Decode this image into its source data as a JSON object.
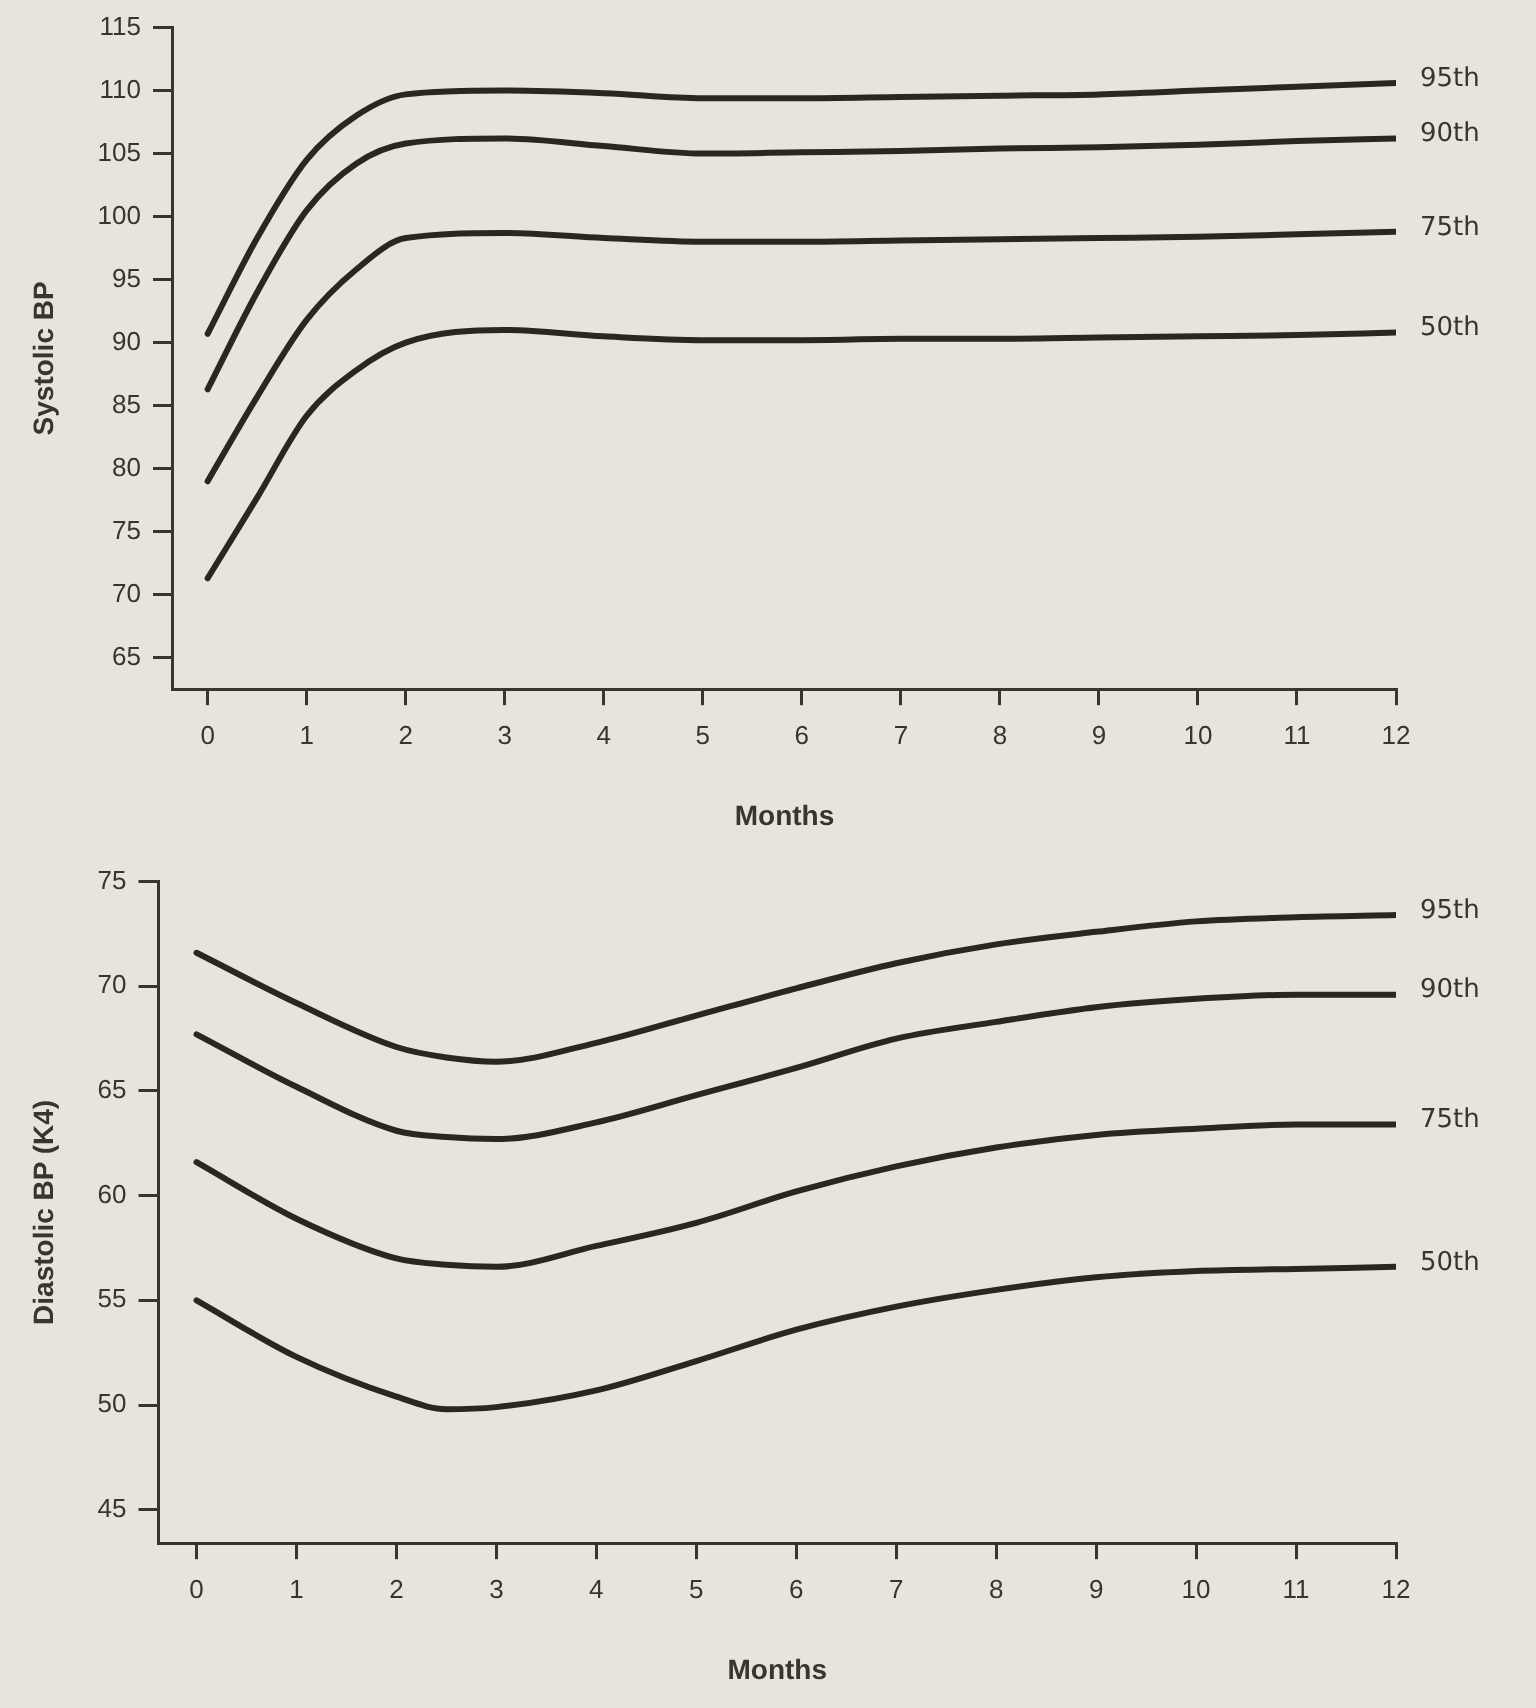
{
  "chart_data": [
    {
      "type": "line",
      "ylabel": "Systolic BP",
      "xlabel": "Months",
      "x": [
        0,
        0.5,
        1,
        1.5,
        2,
        3,
        4,
        5,
        6,
        7,
        8,
        9,
        10,
        11,
        12
      ],
      "xlim": [
        -0.35,
        12
      ],
      "xticks": [
        0,
        1,
        2,
        3,
        4,
        5,
        6,
        7,
        8,
        9,
        10,
        11,
        12
      ],
      "ylim": [
        62.5,
        115
      ],
      "yticks": [
        65,
        70,
        75,
        80,
        85,
        90,
        95,
        100,
        105,
        110,
        115
      ],
      "grid": false,
      "legend": false,
      "marker": "none",
      "line_style": "solid",
      "series": [
        {
          "name": "95th",
          "color": "#2b2622",
          "values": [
            90.7,
            98.3,
            104.5,
            108,
            109.7,
            110,
            109.8,
            109.4,
            109.4,
            109.5,
            109.6,
            109.7,
            110,
            110.3,
            110.6
          ]
        },
        {
          "name": "90th",
          "color": "#2b2622",
          "values": [
            86.3,
            94,
            100.5,
            104.2,
            105.8,
            106.2,
            105.6,
            105,
            105.1,
            105.2,
            105.4,
            105.5,
            105.7,
            106,
            106.2
          ]
        },
        {
          "name": "75th",
          "color": "#2b2622",
          "values": [
            79,
            85.7,
            91.8,
            95.8,
            98.3,
            98.7,
            98.3,
            98,
            98,
            98.1,
            98.2,
            98.3,
            98.4,
            98.6,
            98.8
          ]
        },
        {
          "name": "50th",
          "color": "#2b2622",
          "values": [
            71.3,
            77.7,
            84.2,
            87.8,
            90,
            91,
            90.5,
            90.2,
            90.2,
            90.3,
            90.3,
            90.4,
            90.5,
            90.6,
            90.8
          ]
        }
      ]
    },
    {
      "type": "line",
      "ylabel": "Diastolic BP (K4)",
      "xlabel": "Months",
      "x": [
        0,
        1,
        2,
        2.5,
        3,
        4,
        5,
        6,
        7,
        8,
        9,
        10,
        11,
        12
      ],
      "xlim": [
        -0.38,
        12
      ],
      "xticks": [
        0,
        1,
        2,
        3,
        4,
        5,
        6,
        7,
        8,
        9,
        10,
        11,
        12
      ],
      "ylim": [
        43.4,
        75
      ],
      "yticks": [
        45,
        50,
        55,
        60,
        65,
        70,
        75
      ],
      "grid": false,
      "legend": false,
      "marker": "none",
      "line_style": "solid",
      "series": [
        {
          "name": "95th",
          "color": "#2b2622",
          "values": [
            71.6,
            69.2,
            67.1,
            66.6,
            66.4,
            67.3,
            68.6,
            69.9,
            71.1,
            72,
            72.6,
            73.1,
            73.3,
            73.4
          ]
        },
        {
          "name": "90th",
          "color": "#2b2622",
          "values": [
            67.7,
            65.2,
            63.1,
            62.8,
            62.7,
            63.5,
            64.8,
            66.1,
            67.5,
            68.3,
            69,
            69.4,
            69.6,
            69.6
          ]
        },
        {
          "name": "75th",
          "color": "#2b2622",
          "values": [
            61.6,
            58.9,
            57,
            56.7,
            56.6,
            57.6,
            58.7,
            60.2,
            61.4,
            62.3,
            62.9,
            63.2,
            63.4,
            63.4
          ]
        },
        {
          "name": "50th",
          "color": "#2b2622",
          "values": [
            55,
            52.3,
            50.4,
            49.8,
            49.9,
            50.7,
            52.1,
            53.6,
            54.7,
            55.5,
            56.1,
            56.4,
            56.5,
            56.6
          ]
        }
      ]
    }
  ]
}
